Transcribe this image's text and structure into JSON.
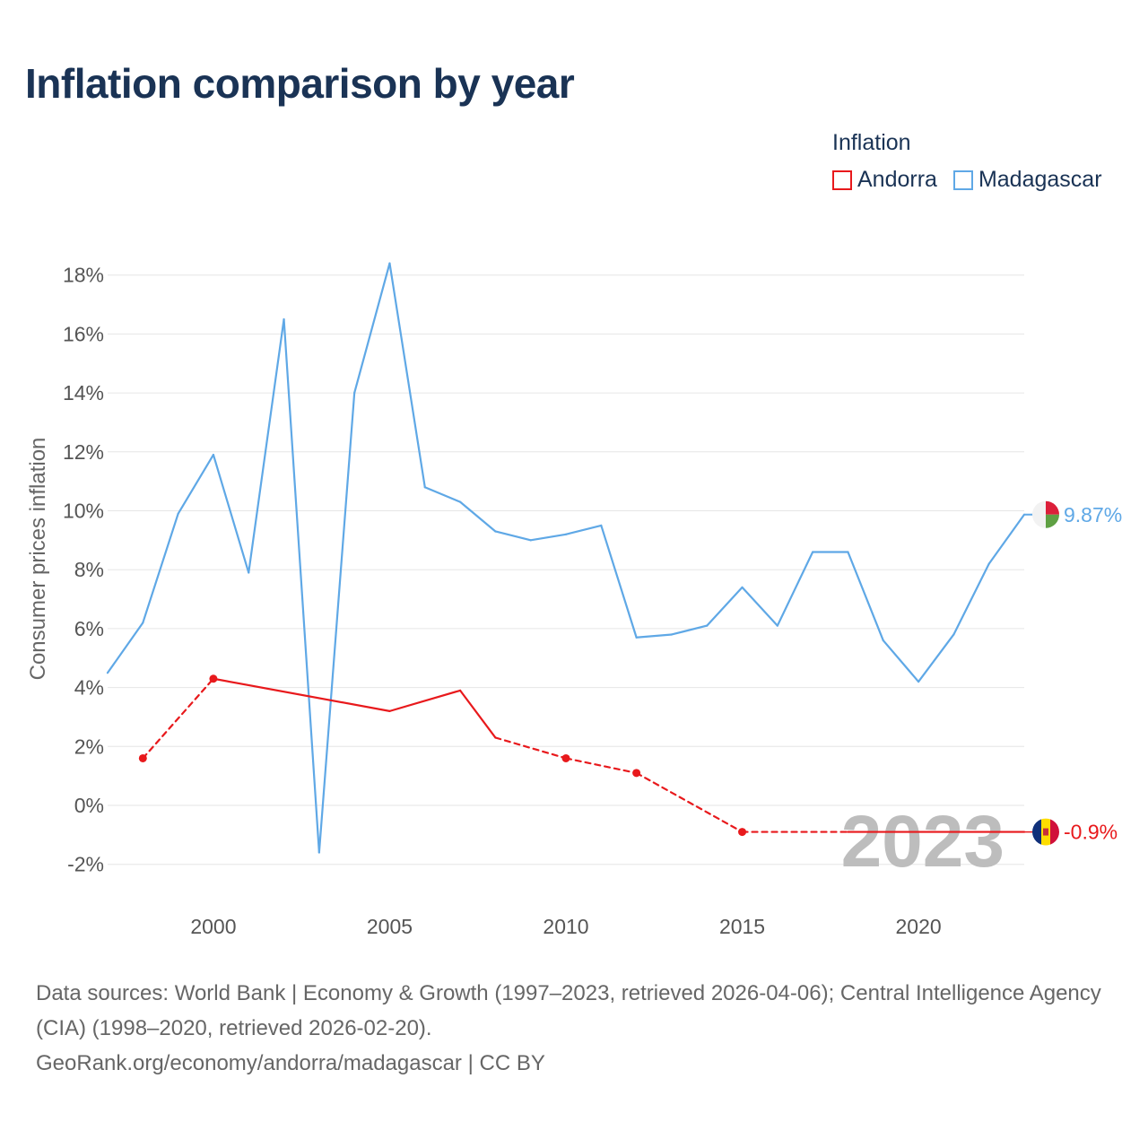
{
  "title": "Inflation comparison by year",
  "legend": {
    "title": "Inflation",
    "items": [
      {
        "name": "Andorra",
        "color": "#e8191c"
      },
      {
        "name": "Madagascar",
        "color": "#5fa8e6"
      }
    ]
  },
  "chart_data": {
    "type": "line",
    "title": "Inflation comparison by year",
    "xlabel": "",
    "ylabel": "Consumer prices inflation",
    "xlim": [
      1997,
      2023
    ],
    "ylim": [
      -3,
      19
    ],
    "x_ticks": [
      2000,
      2005,
      2010,
      2015,
      2020
    ],
    "y_ticks": [
      -2,
      0,
      2,
      4,
      6,
      8,
      10,
      12,
      14,
      16,
      18
    ],
    "y_tick_labels": [
      "-2%",
      "0%",
      "2%",
      "4%",
      "6%",
      "8%",
      "10%",
      "12%",
      "14%",
      "16%",
      "18%"
    ],
    "grid": true,
    "year_watermark": "2023",
    "series": [
      {
        "name": "Madagascar",
        "color": "#5fa8e6",
        "style": "solid",
        "x": [
          1997,
          1998,
          1999,
          2000,
          2001,
          2002,
          2003,
          2004,
          2005,
          2006,
          2007,
          2008,
          2009,
          2010,
          2011,
          2012,
          2013,
          2014,
          2015,
          2016,
          2017,
          2018,
          2019,
          2020,
          2021,
          2022,
          2023
        ],
        "y": [
          4.5,
          6.2,
          9.9,
          11.9,
          7.9,
          16.5,
          -1.6,
          14.0,
          18.4,
          10.8,
          10.3,
          9.3,
          9.0,
          9.2,
          9.5,
          5.7,
          5.8,
          6.1,
          7.4,
          6.1,
          8.6,
          8.6,
          5.6,
          4.2,
          5.8,
          8.2,
          9.87
        ],
        "end_label": "9.87%"
      },
      {
        "name": "Andorra",
        "color": "#e8191c",
        "x": [
          1998,
          2000,
          2005,
          2007,
          2008,
          2010,
          2012,
          2015,
          2018,
          2023
        ],
        "y": [
          1.6,
          4.3,
          3.2,
          3.9,
          2.3,
          1.6,
          1.1,
          -0.9,
          -0.9,
          -0.9
        ],
        "dashed_segments": [
          [
            1998,
            2000
          ],
          [
            2008,
            2010
          ],
          [
            2010,
            2012
          ],
          [
            2012,
            2015
          ],
          [
            2015,
            2018
          ]
        ],
        "markers": [
          1998,
          2000,
          2010,
          2012,
          2015
        ],
        "end_label": "-0.9%"
      }
    ]
  },
  "footer": {
    "sources": "Data sources: World Bank | Economy & Growth (1997–2023, retrieved 2026-04-06); Central Intelligence Agency (CIA) (1998–2020, retrieved 2026-02-20).",
    "credit": "GeoRank.org/economy/andorra/madagascar | CC BY"
  }
}
